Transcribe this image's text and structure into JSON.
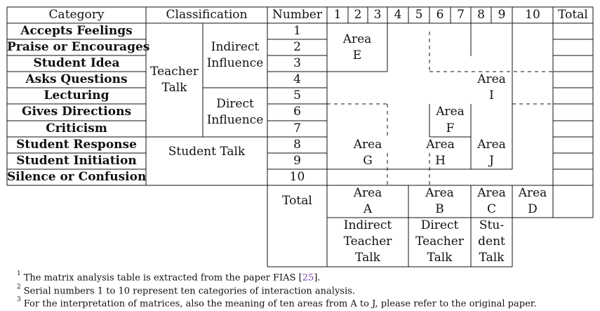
{
  "header": {
    "category": "Category",
    "classification": "Classification",
    "number": "Number",
    "cols": [
      "1",
      "2",
      "3",
      "4",
      "5",
      "6",
      "7",
      "8",
      "9",
      "10"
    ],
    "total": "Total"
  },
  "categories": [
    "Accepts Feelings",
    "Praise or Encourages",
    "Student Idea",
    "Asks Questions",
    "Lecturing",
    "Gives Directions",
    "Criticism",
    "Student Response",
    "Student Initiation",
    "Silence or Confusion"
  ],
  "numbers": [
    "1",
    "2",
    "3",
    "4",
    "5",
    "6",
    "7",
    "8",
    "9",
    "10"
  ],
  "classification": {
    "teacher_talk": [
      "Teacher",
      "Talk"
    ],
    "indirect": [
      "Indirect",
      "Influence"
    ],
    "direct": [
      "Direct",
      "Influence"
    ],
    "student_talk": "Student Talk"
  },
  "total_label": "Total",
  "areas": {
    "A": [
      "Area",
      "A"
    ],
    "B": [
      "Area",
      "B"
    ],
    "C": [
      "Area",
      "C"
    ],
    "D": [
      "Area",
      "D"
    ],
    "E": [
      "Area",
      "E"
    ],
    "F": [
      "Area",
      "F"
    ],
    "G": [
      "Area",
      "G"
    ],
    "H": [
      "Area",
      "H"
    ],
    "I": [
      "Area",
      "I"
    ],
    "J": [
      "Area",
      "J"
    ]
  },
  "bottom_labels": {
    "indirect": [
      "Indirect",
      "Teacher",
      "Talk"
    ],
    "direct": [
      "Direct",
      "Teacher",
      "Talk"
    ],
    "student": [
      "Stu-",
      "dent",
      "Talk"
    ]
  },
  "footnotes": [
    {
      "mark": "1",
      "text": "The matrix analysis table is extracted from the paper FIAS [",
      "cite": "25",
      "end": "]."
    },
    {
      "mark": "2",
      "text": "Serial numbers 1 to 10 represent ten categories of interaction analysis."
    },
    {
      "mark": "3",
      "text": "For the interpretation of matrices, also the meaning of ten areas from A to J, please refer to the original paper."
    }
  ]
}
